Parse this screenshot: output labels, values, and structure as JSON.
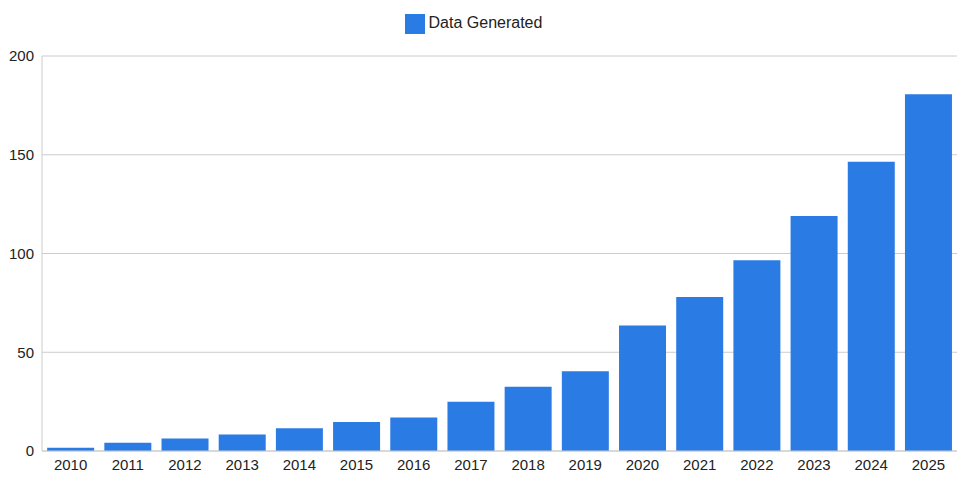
{
  "chart_data": {
    "type": "bar",
    "categories": [
      "2010",
      "2011",
      "2012",
      "2013",
      "2014",
      "2015",
      "2016",
      "2017",
      "2018",
      "2019",
      "2020",
      "2021",
      "2022",
      "2023",
      "2024",
      "2025"
    ],
    "series": [
      {
        "name": "Data Generated",
        "color": "#2b7be4",
        "values": [
          1.6,
          4.2,
          6.3,
          8.4,
          11.5,
          14.7,
          17,
          25,
          32.5,
          40.4,
          63.5,
          78,
          96.6,
          119,
          146.5,
          180.6
        ]
      }
    ],
    "ylim": [
      0,
      200
    ],
    "yticks": [
      0,
      50,
      100,
      150,
      200
    ],
    "grid": true,
    "legend": "top"
  }
}
